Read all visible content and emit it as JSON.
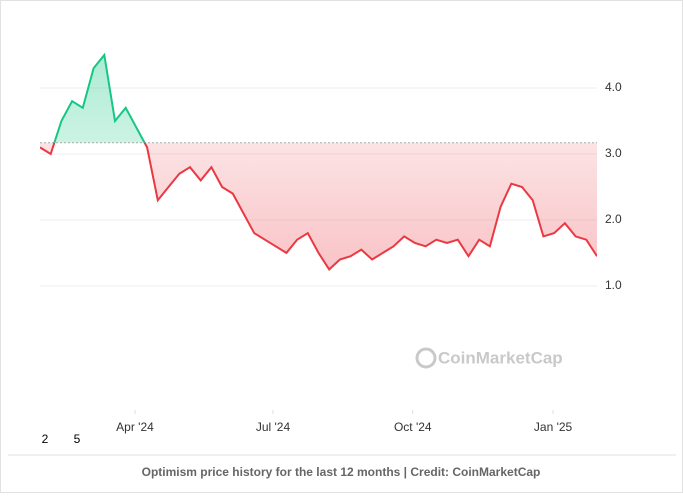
{
  "chart_data": {
    "type": "baseline-line",
    "values": [
      3.1,
      3.0,
      3.5,
      3.8,
      3.7,
      4.3,
      4.5,
      3.5,
      3.7,
      3.4,
      3.1,
      2.3,
      2.5,
      2.7,
      2.8,
      2.6,
      2.8,
      2.5,
      2.4,
      2.1,
      1.8,
      1.7,
      1.6,
      1.5,
      1.7,
      1.8,
      1.5,
      1.25,
      1.4,
      1.45,
      1.55,
      1.4,
      1.5,
      1.6,
      1.75,
      1.65,
      1.6,
      1.7,
      1.65,
      1.7,
      1.45,
      1.7,
      1.6,
      2.2,
      2.55,
      2.5,
      2.3,
      1.75,
      1.8,
      1.95,
      1.75,
      1.7,
      1.45
    ],
    "baseline": 3.17,
    "up_color": "#16c784",
    "down_color": "#ea3943",
    "xlim": [
      0,
      52
    ],
    "xticks": [
      {
        "value": 8.87,
        "label": "Apr '24"
      },
      {
        "value": 21.75,
        "label": "Jul '24"
      },
      {
        "value": 34.8,
        "label": "Oct '24"
      },
      {
        "value": 47.9,
        "label": "Jan '25"
      }
    ],
    "ylim": [
      -0.88,
      5.03
    ],
    "yticks": [
      {
        "value": 1,
        "label": "1.0"
      },
      {
        "value": 2,
        "label": "2.0"
      },
      {
        "value": 3,
        "label": "3.0"
      },
      {
        "value": 4,
        "label": "4.0"
      }
    ],
    "grid": true,
    "watermark": "CoinMarketCap",
    "corner_labels": [
      "2",
      "5"
    ],
    "caption": "Optimism price history for the last 12 months | Credit: CoinMarketCap"
  }
}
